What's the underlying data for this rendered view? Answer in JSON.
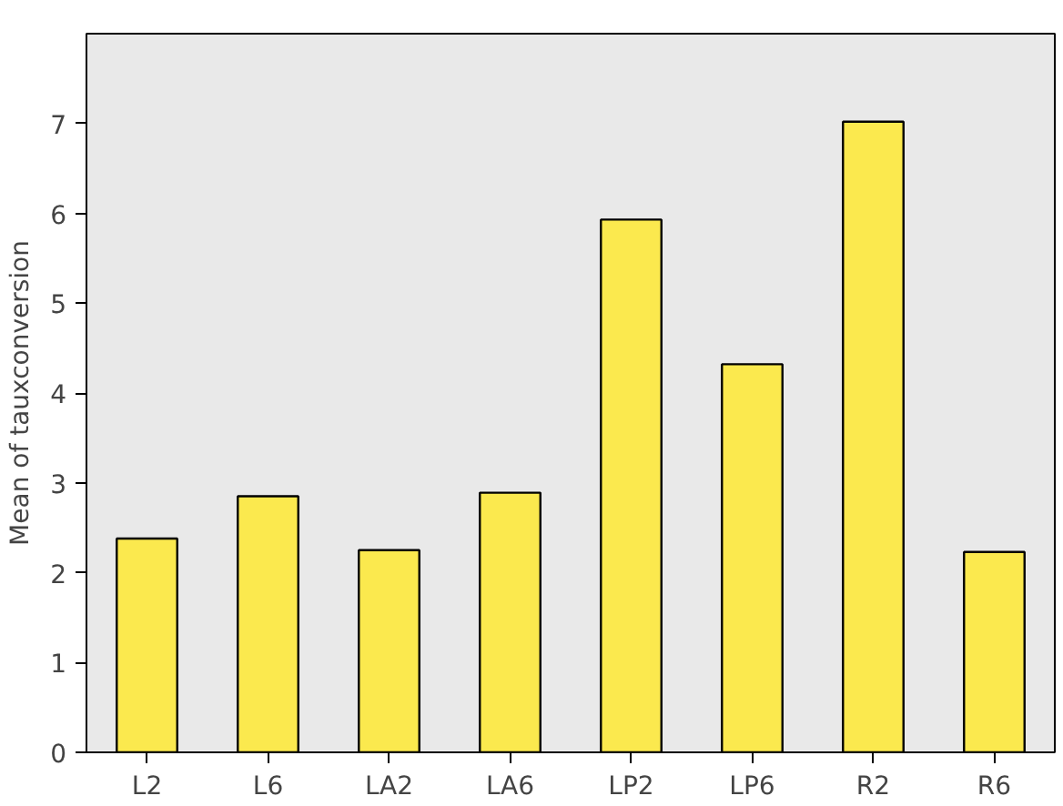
{
  "chart_data": {
    "type": "bar",
    "ylabel": "Mean of tauxconversion",
    "categories": [
      "L2",
      "L6",
      "LA2",
      "LA6",
      "LP2",
      "LP6",
      "R2",
      "R6"
    ],
    "values": [
      2.38,
      2.85,
      2.25,
      2.89,
      5.93,
      4.32,
      7.02,
      2.23
    ],
    "color": "#fbe94e",
    "ylim": [
      0,
      8
    ],
    "yticks": [
      0,
      1,
      2,
      3,
      4,
      5,
      6,
      7
    ],
    "grid": false
  }
}
